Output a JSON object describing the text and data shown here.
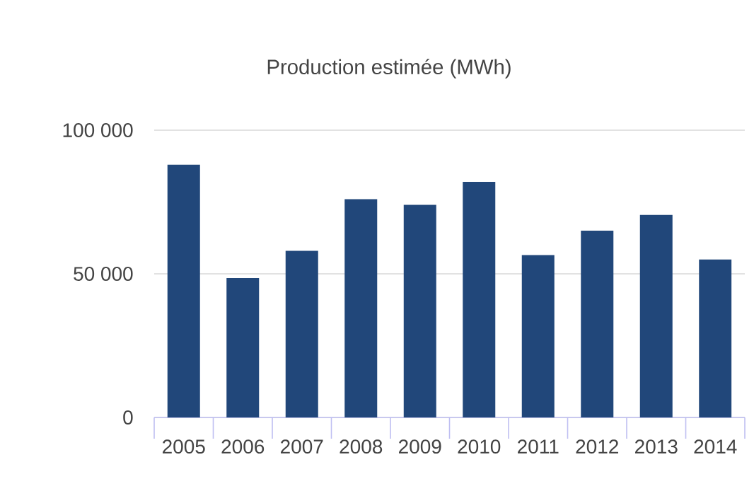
{
  "chart_data": {
    "type": "bar",
    "title": "Production estimée (MWh)",
    "categories": [
      "2005",
      "2006",
      "2007",
      "2008",
      "2009",
      "2010",
      "2011",
      "2012",
      "2013",
      "2014"
    ],
    "values": [
      88000,
      48500,
      58000,
      76000,
      74000,
      82000,
      56500,
      65000,
      70500,
      55000
    ],
    "color": "#21477a",
    "ylim": [
      0,
      100000
    ],
    "yticks": [
      {
        "value": 0,
        "label": "0"
      },
      {
        "value": 50000,
        "label": "50 000"
      },
      {
        "value": 100000,
        "label": "100 000"
      }
    ],
    "grid": "y"
  }
}
